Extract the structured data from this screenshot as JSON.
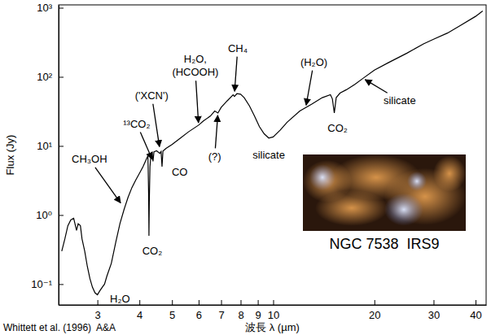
{
  "chart_data": {
    "type": "line",
    "title": "NGC 7538  IRS9",
    "source": "Whittett et al. (1996)  A&A",
    "x_label": "波長 λ (µm)",
    "y_label": "Flux (Jy)",
    "color": "#000000",
    "log": true,
    "grid": false,
    "x": [
      2.35,
      2.4,
      2.45,
      2.5,
      2.55,
      2.6,
      2.63,
      2.67,
      2.7,
      2.75,
      2.8,
      2.85,
      2.9,
      2.95,
      3.0,
      3.05,
      3.1,
      3.15,
      3.2,
      3.3,
      3.4,
      3.5,
      3.6,
      3.7,
      3.8,
      3.9,
      4.0,
      4.1,
      4.2,
      4.24,
      4.26,
      4.27,
      4.28,
      4.3,
      4.33,
      4.36,
      4.39,
      4.42,
      4.5,
      4.6,
      4.64,
      4.67,
      4.7,
      4.8,
      5.0,
      5.3,
      5.6,
      6.0,
      6.2,
      6.5,
      6.7,
      6.85,
      7.0,
      7.3,
      7.6,
      7.67,
      7.8,
      8.0,
      8.2,
      8.5,
      8.8,
      9.1,
      9.4,
      9.7,
      10.0,
      10.5,
      11,
      12,
      13,
      14,
      14.8,
      15.0,
      15.2,
      15.4,
      15.8,
      16.5,
      17.5,
      18.5,
      20,
      22,
      25,
      28,
      30,
      33,
      36,
      40,
      42
    ],
    "values": [
      0.3,
      0.45,
      0.7,
      0.85,
      0.9,
      0.6,
      0.75,
      0.7,
      0.45,
      0.3,
      0.18,
      0.12,
      0.09,
      0.075,
      0.07,
      0.08,
      0.09,
      0.1,
      0.13,
      0.2,
      0.4,
      0.75,
      1.2,
      1.8,
      2.5,
      3.2,
      4.0,
      5.0,
      6.5,
      7.2,
      2.0,
      0.5,
      1.5,
      5.0,
      7.5,
      8.0,
      6.0,
      8.2,
      8.5,
      7.8,
      8.3,
      5.0,
      8.4,
      9.2,
      10.5,
      13,
      16,
      20,
      23,
      27,
      32,
      30,
      36,
      45,
      55,
      52,
      57,
      56,
      50,
      38,
      27,
      19,
      15,
      13,
      13.5,
      17,
      22,
      32,
      40,
      50,
      55,
      48,
      30,
      50,
      58,
      65,
      78,
      95,
      125,
      160,
      220,
      300,
      350,
      430,
      550,
      750,
      900
    ],
    "xlim": [
      2.3,
      43
    ],
    "ylim": [
      0.05,
      1100
    ],
    "xticks": [
      3,
      4,
      5,
      6,
      7,
      8,
      9,
      10,
      20,
      30,
      40
    ],
    "yticks": [
      {
        "value": 0.1,
        "label": "10⁻¹"
      },
      {
        "value": 1,
        "label": "10⁰"
      },
      {
        "value": 10,
        "label": "10¹"
      },
      {
        "value": 100,
        "label": "10²"
      },
      {
        "value": 1000,
        "label": "10³"
      }
    ],
    "annotations": [
      {
        "text": "CH₃OH",
        "x": 3.55,
        "y": 1.4
      },
      {
        "text": "H₂O",
        "x": 3.5,
        "y": 0.06
      },
      {
        "text": "¹³CO₂",
        "x": 4.39,
        "y": 6
      },
      {
        "text": "('XCN')",
        "x": 4.6,
        "y": 9
      },
      {
        "text": "CO",
        "x": 4.67,
        "y": 5
      },
      {
        "text": "CO₂",
        "x": 4.27,
        "y": 0.5
      },
      {
        "text": "H₂O,",
        "x": 6.0,
        "y": 20
      },
      {
        "text": "(HCOOH)",
        "x": 6.0,
        "y": 20
      },
      {
        "text": "CH₄",
        "x": 7.67,
        "y": 57
      },
      {
        "text": "(?)",
        "x": 6.85,
        "y": 30
      },
      {
        "text": "(H₂O)",
        "x": 12.5,
        "y": 36
      },
      {
        "text": "silicate",
        "x": 9.7,
        "y": 13
      },
      {
        "text": "CO₂",
        "x": 15.2,
        "y": 30
      },
      {
        "text": "silicate",
        "x": 18.5,
        "y": 95
      }
    ]
  }
}
